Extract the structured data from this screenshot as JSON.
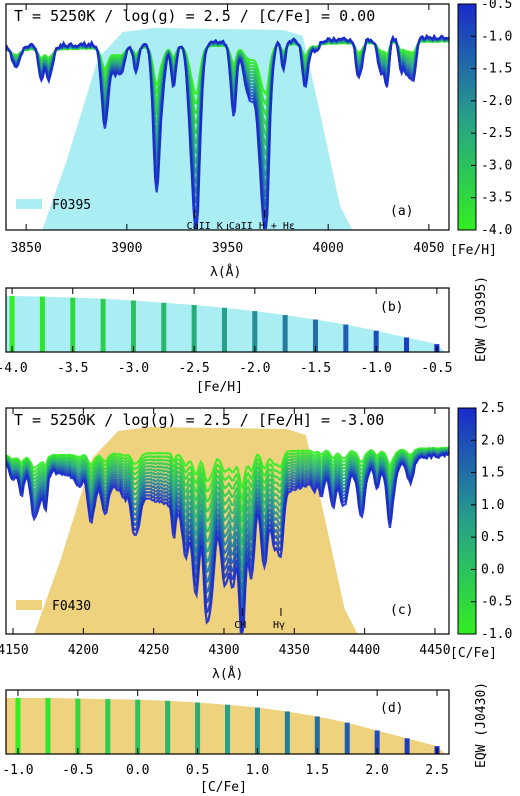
{
  "chart_data": [
    {
      "panel": "a",
      "type": "line",
      "title": "T = 5250K / log(g) = 2.5 / [C/Fe] = 0.00",
      "xlabel": "λ(Å)",
      "ylabel": "",
      "xlim": [
        3840,
        4060
      ],
      "xticks": [
        "3850",
        "3900",
        "3950",
        "4000",
        "4050"
      ],
      "filter_label": "F0395",
      "filter_color": "#aaeef4",
      "filter_range": [
        3858,
        4012
      ],
      "panel_letter": "(a)",
      "line_annotations": [
        {
          "x": 3933.7,
          "label": "CaII K"
        },
        {
          "x": 3968.5,
          "label": "CaII H + Hε"
        }
      ],
      "colorbar_label": "[Fe/H]",
      "colorbar_ticks": [
        "-0.5",
        "-1.0",
        "-1.5",
        "-2.0",
        "-2.5",
        "-3.0",
        "-3.5",
        "-4.0"
      ],
      "colorbar_range": [
        -4.0,
        -0.5
      ],
      "n_series": 15,
      "series_param": [
        -4.0,
        -3.75,
        -3.5,
        -3.25,
        -3.0,
        -2.75,
        -2.5,
        -2.25,
        -2.0,
        -1.75,
        -1.5,
        -1.25,
        -1.0,
        -0.75,
        -0.5
      ],
      "colors": {
        "low": "#33ee22",
        "high": "#1a2acc"
      }
    },
    {
      "panel": "b",
      "type": "bar",
      "title": "",
      "xlabel": "[Fe/H]",
      "ylabel": "EQW (J0395)",
      "xlim": [
        -4.05,
        -0.4
      ],
      "xticks": [
        "-4.0",
        "-3.5",
        "-3.0",
        "-2.5",
        "-2.0",
        "-1.5",
        "-1.0",
        "-0.5"
      ],
      "panel_letter": "(b)",
      "fill_color": "#aaeef4",
      "x": [
        -4.0,
        -3.75,
        -3.5,
        -3.25,
        -3.0,
        -2.75,
        -2.5,
        -2.25,
        -2.0,
        -1.75,
        -1.5,
        -1.25,
        -1.0,
        -0.75,
        -0.5
      ],
      "values": [
        1.0,
        0.99,
        0.97,
        0.95,
        0.92,
        0.88,
        0.84,
        0.79,
        0.73,
        0.66,
        0.58,
        0.49,
        0.38,
        0.26,
        0.14
      ]
    },
    {
      "panel": "c",
      "type": "line",
      "title": "T = 5250K / log(g) = 2.5 / [Fe/H] = -3.00",
      "xlabel": "λ(Å)",
      "ylabel": "",
      "xlim": [
        4145,
        4460
      ],
      "xticks": [
        "4150",
        "4200",
        "4250",
        "4300",
        "4350",
        "4400",
        "4450"
      ],
      "filter_label": "F0430",
      "filter_color": "#efd27e",
      "filter_range": [
        4165,
        4395
      ],
      "panel_letter": "(c)",
      "line_annotations": [
        {
          "x": 4313,
          "label": "CH"
        },
        {
          "x": 4340.5,
          "label": "Hγ"
        }
      ],
      "colorbar_label": "[C/Fe]",
      "colorbar_ticks": [
        "2.5",
        "2.0",
        "1.5",
        "1.0",
        "0.5",
        "0.0",
        "-0.5",
        "-1.0"
      ],
      "colorbar_range": [
        -1.0,
        2.5
      ],
      "n_series": 15,
      "series_param": [
        -1.0,
        -0.75,
        -0.5,
        -0.25,
        0.0,
        0.25,
        0.5,
        0.75,
        1.0,
        1.25,
        1.5,
        1.75,
        2.0,
        2.25,
        2.5
      ],
      "colors": {
        "low": "#33ee22",
        "high": "#1a2acc"
      }
    },
    {
      "panel": "d",
      "type": "bar",
      "title": "",
      "xlabel": "[C/Fe]",
      "ylabel": "EQW (J0430)",
      "xlim": [
        -1.1,
        2.6
      ],
      "xticks": [
        "-1.0",
        "-0.5",
        "0.0",
        "0.5",
        "1.0",
        "1.5",
        "2.0",
        "2.5"
      ],
      "panel_letter": "(d)",
      "fill_color": "#efd27e",
      "x": [
        -1.0,
        -0.75,
        -0.5,
        -0.25,
        0.0,
        0.25,
        0.5,
        0.75,
        1.0,
        1.25,
        1.5,
        1.75,
        2.0,
        2.25,
        2.5
      ],
      "values": [
        1.0,
        1.0,
        0.99,
        0.98,
        0.97,
        0.95,
        0.92,
        0.88,
        0.83,
        0.76,
        0.67,
        0.56,
        0.42,
        0.28,
        0.14
      ]
    }
  ]
}
